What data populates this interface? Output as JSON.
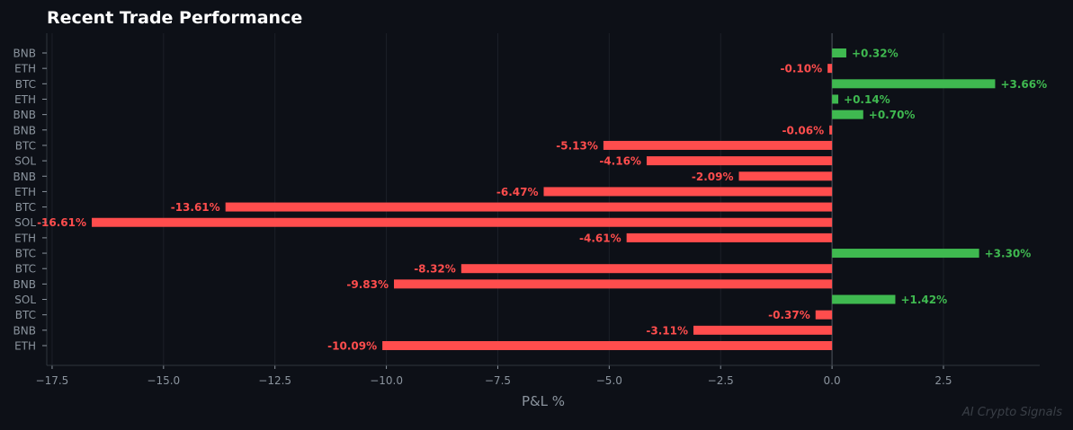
{
  "chart_data": {
    "type": "bar",
    "orientation": "horizontal",
    "title": "Recent Trade Performance",
    "xlabel": "P&L %",
    "ylabel": "",
    "xlim": [
      -17.62,
      4.66
    ],
    "xticks": [
      -17.5,
      -15.0,
      -12.5,
      -10.0,
      -7.5,
      -5.0,
      -2.5,
      0.0,
      2.5
    ],
    "xtick_labels": [
      "−17.5",
      "−15.0",
      "−12.5",
      "−10.0",
      "−7.5",
      "−5.0",
      "−2.5",
      "0.0",
      "2.5"
    ],
    "grid": true,
    "categories": [
      "BNB",
      "ETH",
      "BTC",
      "ETH",
      "BNB",
      "BNB",
      "BTC",
      "SOL",
      "BNB",
      "ETH",
      "BTC",
      "SOL",
      "ETH",
      "BTC",
      "BTC",
      "BNB",
      "SOL",
      "BTC",
      "BNB",
      "ETH"
    ],
    "values": [
      0.32,
      -0.1,
      3.66,
      0.14,
      0.7,
      -0.06,
      -5.13,
      -4.16,
      -2.09,
      -6.47,
      -13.61,
      -16.61,
      -4.61,
      3.3,
      -8.32,
      -9.83,
      1.42,
      -0.37,
      -3.11,
      -10.09
    ],
    "labels": [
      "+0.32%",
      "-0.10%",
      "+3.66%",
      "+0.14%",
      "+0.70%",
      "-0.06%",
      "-5.13%",
      "-4.16%",
      "-2.09%",
      "-6.47%",
      "-13.61%",
      "-16.61%",
      "-4.61%",
      "+3.30%",
      "-8.32%",
      "-9.83%",
      "+1.42%",
      "-0.37%",
      "-3.11%",
      "-10.09%"
    ],
    "colors": {
      "positive": "#3fb950",
      "negative": "#ff4d4d",
      "text": "#8b949e",
      "grid": "#1c2028",
      "axis": "#30363d"
    }
  },
  "watermark": "AI Crypto Signals"
}
